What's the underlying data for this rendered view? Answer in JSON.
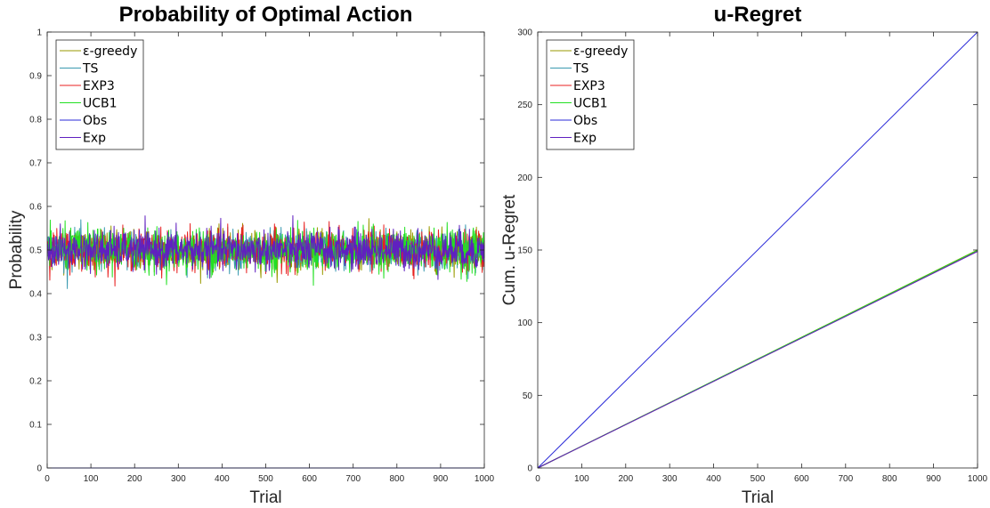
{
  "chart_data": [
    {
      "type": "line",
      "title": "Probability of Optimal Action",
      "xlabel": "Trial",
      "ylabel": "Probability",
      "xlim": [
        0,
        1000
      ],
      "ylim": [
        0,
        1
      ],
      "xticks": [
        0,
        100,
        200,
        300,
        400,
        500,
        600,
        700,
        800,
        900,
        1000
      ],
      "yticks": [
        0,
        0.1,
        0.2,
        0.3,
        0.4,
        0.5,
        0.6,
        0.7,
        0.8,
        0.9,
        1
      ],
      "grid": false,
      "legend": "top-left",
      "series": [
        {
          "name": "ε-greedy",
          "color": "#9a9a00",
          "x": [
            1,
            1000
          ],
          "y": [
            0.5,
            0.5
          ],
          "noise": 0.022
        },
        {
          "name": "TS",
          "color": "#3a9ab0",
          "x": [
            1,
            1000
          ],
          "y": [
            0.5,
            0.5
          ],
          "noise": 0.022
        },
        {
          "name": "EXP3",
          "color": "#e82020",
          "x": [
            1,
            1000
          ],
          "y": [
            0.5,
            0.5
          ],
          "noise": 0.022
        },
        {
          "name": "UCB1",
          "color": "#22e022",
          "x": [
            1,
            1000
          ],
          "y": [
            0.5,
            0.5
          ],
          "noise": 0.024
        },
        {
          "name": "Obs",
          "color": "#2a2ad8",
          "x": [
            1,
            1000
          ],
          "y": [
            0,
            0
          ],
          "noise": 0
        },
        {
          "name": "Exp",
          "color": "#6020c0",
          "x": [
            1,
            1000
          ],
          "y": [
            0.5,
            0.5
          ],
          "noise": 0.022
        }
      ]
    },
    {
      "type": "line",
      "title": "u-Regret",
      "xlabel": "Trial",
      "ylabel": "Cum. u-Regret",
      "xlim": [
        0,
        1000
      ],
      "ylim": [
        0,
        300
      ],
      "xticks": [
        0,
        100,
        200,
        300,
        400,
        500,
        600,
        700,
        800,
        900,
        1000
      ],
      "yticks": [
        0,
        50,
        100,
        150,
        200,
        250,
        300
      ],
      "grid": false,
      "legend": "top-left",
      "series": [
        {
          "name": "ε-greedy",
          "color": "#9a9a00",
          "x": [
            0,
            1000
          ],
          "y": [
            0,
            150
          ]
        },
        {
          "name": "TS",
          "color": "#3a9ab0",
          "x": [
            0,
            1000
          ],
          "y": [
            0,
            149.5
          ]
        },
        {
          "name": "EXP3",
          "color": "#e82020",
          "x": [
            0,
            1000
          ],
          "y": [
            0,
            149.2
          ]
        },
        {
          "name": "UCB1",
          "color": "#22e022",
          "x": [
            0,
            1000
          ],
          "y": [
            0,
            149.8
          ]
        },
        {
          "name": "Obs",
          "color": "#2a2ad8",
          "x": [
            0,
            1000
          ],
          "y": [
            0,
            300
          ]
        },
        {
          "name": "Exp",
          "color": "#6020c0",
          "x": [
            0,
            1000
          ],
          "y": [
            0,
            149
          ]
        }
      ]
    }
  ]
}
